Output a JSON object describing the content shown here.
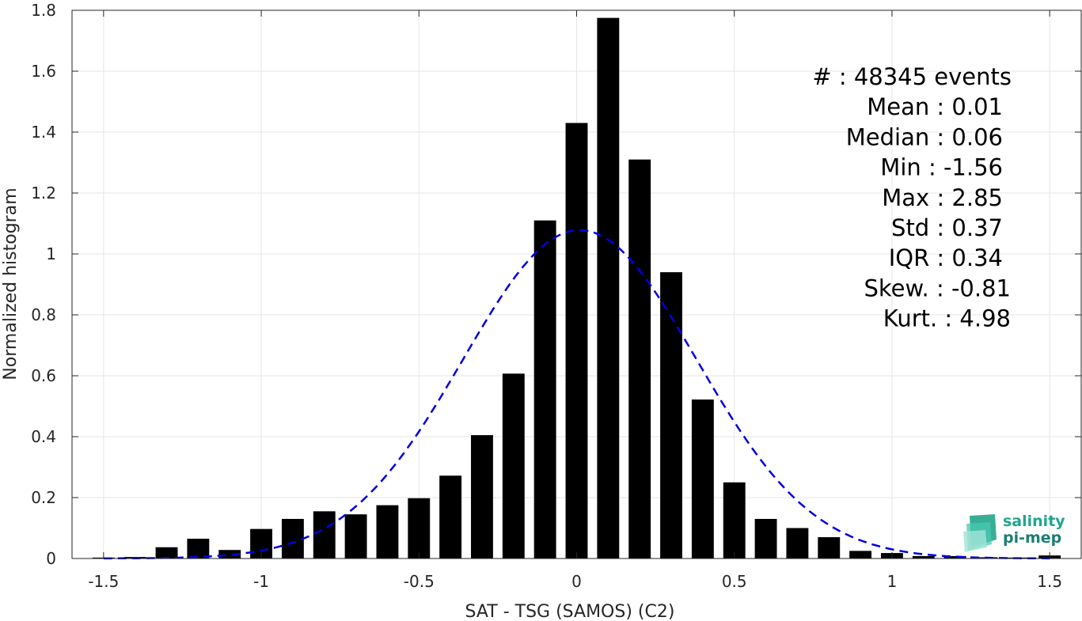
{
  "chart_data": {
    "type": "bar",
    "xlabel": "SAT - TSG (SAMOS) (C2)",
    "ylabel": "Normalized histogram",
    "xlim": [
      -1.6,
      1.6
    ],
    "ylim": [
      0,
      1.8
    ],
    "grid": true,
    "xticks": [
      -1.5,
      -1,
      -0.5,
      0,
      0.5,
      1,
      1.5
    ],
    "xtick_labels": [
      "-1.5",
      "-1",
      "-0.5",
      "0",
      "0.5",
      "1",
      "1.5"
    ],
    "yticks": [
      0,
      0.2,
      0.4,
      0.6,
      0.8,
      1,
      1.2,
      1.4,
      1.6,
      1.8
    ],
    "ytick_labels": [
      "0",
      "0.2",
      "0.4",
      "0.6",
      "0.8",
      "1",
      "1.2",
      "1.4",
      "1.6",
      "1.8"
    ],
    "bar_color": "#000000",
    "bin_width": 0.1,
    "bins": {
      "centers": [
        -1.5,
        -1.4,
        -1.3,
        -1.2,
        -1.1,
        -1.0,
        -0.9,
        -0.8,
        -0.7,
        -0.6,
        -0.5,
        -0.4,
        -0.3,
        -0.2,
        -0.1,
        0.0,
        0.1,
        0.2,
        0.3,
        0.4,
        0.5,
        0.6,
        0.7,
        0.8,
        0.9,
        1.0,
        1.1,
        1.2,
        1.3,
        1.4,
        1.5
      ],
      "values": [
        0.003,
        0.005,
        0.037,
        0.065,
        0.028,
        0.097,
        0.13,
        0.155,
        0.145,
        0.175,
        0.198,
        0.272,
        0.405,
        0.607,
        1.11,
        1.43,
        1.775,
        1.31,
        0.94,
        0.522,
        0.25,
        0.13,
        0.1,
        0.07,
        0.025,
        0.018,
        0.008,
        0.008,
        0.004,
        0.003,
        0.01
      ]
    },
    "fit_curve": {
      "type": "normal",
      "mean": 0.01,
      "std": 0.37,
      "color": "#0000e0",
      "style": "dashed"
    },
    "stats": [
      "#  : 48345 events",
      "Mean : 0.01",
      "Median : 0.06",
      "Min : -1.56",
      "Max : 2.85",
      "Std : 0.37",
      "IQR : 0.34",
      "Skew. : -0.81",
      "Kurt. : 4.98"
    ]
  },
  "logo": {
    "line1": "salinity",
    "line2": "pi-mep",
    "color": "#1fa58f"
  }
}
